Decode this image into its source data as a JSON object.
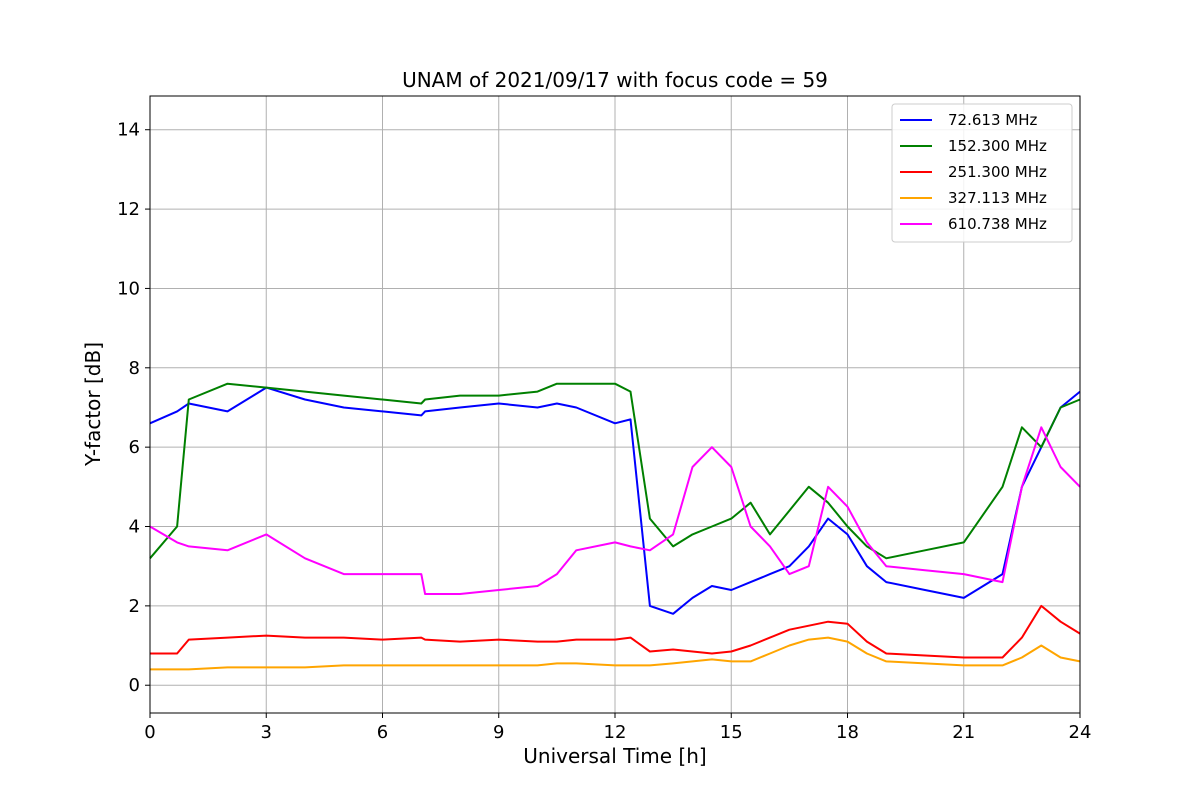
{
  "chart_data": {
    "type": "line",
    "title": "UNAM of 2021/09/17 with focus code = 59",
    "xlabel": "Universal Time [h]",
    "ylabel": "Y-factor [dB]",
    "xlim": [
      0,
      24
    ],
    "ylim": [
      -0.7,
      14.85
    ],
    "xticks": [
      0,
      3,
      6,
      9,
      12,
      15,
      18,
      21,
      24
    ],
    "xtick_labels": [
      "0",
      "3",
      "6",
      "9",
      "12",
      "15",
      "18",
      "21",
      "24"
    ],
    "yticks": [
      0,
      2,
      4,
      6,
      8,
      10,
      12,
      14
    ],
    "ytick_labels": [
      "0",
      "2",
      "4",
      "6",
      "8",
      "10",
      "12",
      "14"
    ],
    "grid": true,
    "legend_position": "top-right",
    "x": [
      0,
      0.7,
      1,
      2,
      3,
      4,
      5,
      6,
      7,
      7.1,
      8,
      9,
      10,
      10.5,
      11,
      12,
      12.4,
      12.9,
      13.5,
      14,
      14.5,
      15,
      15.5,
      16,
      16.5,
      17,
      17.5,
      18,
      18.5,
      19,
      20,
      21,
      22,
      22.5,
      23,
      23.5,
      24
    ],
    "series": [
      {
        "name": " 72.613 MHz",
        "color": "#0000ff",
        "values": [
          6.6,
          6.9,
          7.1,
          6.9,
          7.5,
          7.2,
          7.0,
          6.9,
          6.8,
          6.9,
          7.0,
          7.1,
          7.0,
          7.1,
          7.0,
          6.6,
          6.7,
          2.0,
          1.8,
          2.2,
          2.5,
          2.4,
          2.6,
          2.8,
          3.0,
          3.5,
          4.2,
          3.8,
          3.0,
          2.6,
          2.4,
          2.2,
          2.8,
          5.0,
          6.0,
          7.0,
          7.4
        ]
      },
      {
        "name": "152.300 MHz",
        "color": "#008000",
        "values": [
          3.2,
          4.0,
          7.2,
          7.6,
          7.5,
          7.4,
          7.3,
          7.2,
          7.1,
          7.2,
          7.3,
          7.3,
          7.4,
          7.6,
          7.6,
          7.6,
          7.4,
          4.2,
          3.5,
          3.8,
          4.0,
          4.2,
          4.6,
          3.8,
          4.4,
          5.0,
          4.6,
          4.0,
          3.5,
          3.2,
          3.4,
          3.6,
          5.0,
          6.5,
          6.0,
          7.0,
          7.2
        ]
      },
      {
        "name": "251.300 MHz",
        "color": "#ff0000",
        "values": [
          0.8,
          0.8,
          1.15,
          1.2,
          1.25,
          1.2,
          1.2,
          1.15,
          1.2,
          1.15,
          1.1,
          1.15,
          1.1,
          1.1,
          1.15,
          1.15,
          1.2,
          0.85,
          0.9,
          0.85,
          0.8,
          0.85,
          1.0,
          1.2,
          1.4,
          1.5,
          1.6,
          1.55,
          1.1,
          0.8,
          0.75,
          0.7,
          0.7,
          1.2,
          2.0,
          1.6,
          1.3
        ]
      },
      {
        "name": "327.113 MHz",
        "color": "#ffa500",
        "values": [
          0.4,
          0.4,
          0.4,
          0.45,
          0.45,
          0.45,
          0.5,
          0.5,
          0.5,
          0.5,
          0.5,
          0.5,
          0.5,
          0.55,
          0.55,
          0.5,
          0.5,
          0.5,
          0.55,
          0.6,
          0.65,
          0.6,
          0.6,
          0.8,
          1.0,
          1.15,
          1.2,
          1.1,
          0.8,
          0.6,
          0.55,
          0.5,
          0.5,
          0.7,
          1.0,
          0.7,
          0.6
        ]
      },
      {
        "name": "610.738 MHz",
        "color": "#ff00ff",
        "values": [
          4.0,
          3.6,
          3.5,
          3.4,
          3.8,
          3.2,
          2.8,
          2.8,
          2.8,
          2.3,
          2.3,
          2.4,
          2.5,
          2.8,
          3.4,
          3.6,
          3.5,
          3.4,
          3.8,
          5.5,
          6.0,
          5.5,
          4.0,
          3.5,
          2.8,
          3.0,
          5.0,
          4.5,
          3.6,
          3.0,
          2.9,
          2.8,
          2.6,
          5.0,
          6.5,
          5.5,
          5.0
        ]
      }
    ]
  }
}
